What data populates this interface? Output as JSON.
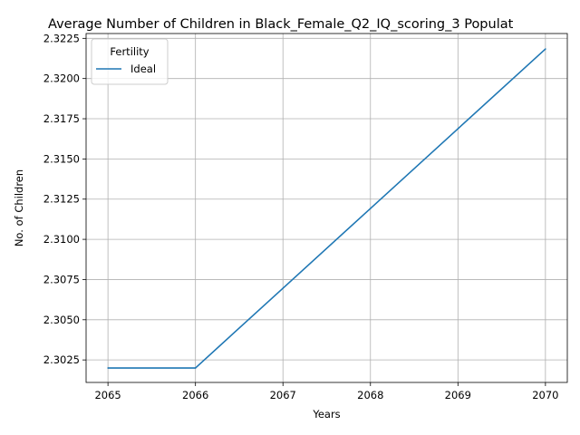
{
  "chart_data": {
    "type": "line",
    "title": "Average Number of Children in Black_Female_Q2_IQ_scoring_3 Populat",
    "xlabel": "Years",
    "ylabel": "No. of Children",
    "x": [
      2065,
      2066,
      2067,
      2068,
      2069,
      2070
    ],
    "xticks": [
      "2065",
      "2066",
      "2067",
      "2068",
      "2069",
      "2070"
    ],
    "yticks": [
      "2.3025",
      "2.3050",
      "2.3075",
      "2.3100",
      "2.3125",
      "2.3150",
      "2.3175",
      "2.3200",
      "2.3225"
    ],
    "xlim": [
      2064.75,
      2070.25
    ],
    "ylim": [
      2.3011,
      2.3228
    ],
    "grid": true,
    "legend": {
      "title": "Fertility",
      "placement": "top-left"
    },
    "series": [
      {
        "name": "Ideal",
        "color": "#1f77b4",
        "values": [
          2.302,
          2.302,
          2.30696,
          2.31192,
          2.31688,
          2.32184
        ]
      }
    ]
  }
}
